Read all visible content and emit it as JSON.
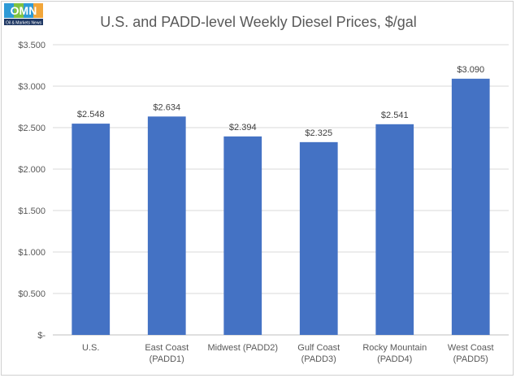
{
  "logo": {
    "text": "OMN",
    "subtext": "Oil & Markets News"
  },
  "chart_data": {
    "type": "bar",
    "title": "U.S. and PADD-level Weekly Diesel Prices, $/gal",
    "categories": [
      [
        "U.S."
      ],
      [
        "East Coast",
        "(PADD1)"
      ],
      [
        "Midwest (PADD2)"
      ],
      [
        "Gulf Coast",
        "(PADD3)"
      ],
      [
        "Rocky Mountain",
        "(PADD4)"
      ],
      [
        "West Coast",
        "(PADD5)"
      ]
    ],
    "values": [
      2.548,
      2.634,
      2.394,
      2.325,
      2.541,
      3.09
    ],
    "data_labels": [
      "$2.548",
      "$2.634",
      "$2.394",
      "$2.325",
      "$2.541",
      "$3.090"
    ],
    "ylim": [
      0,
      3.5
    ],
    "y_ticks": [
      0,
      0.5,
      1.0,
      1.5,
      2.0,
      2.5,
      3.0,
      3.5
    ],
    "y_tick_labels": [
      "$-",
      "$0.500",
      "$1.000",
      "$1.500",
      "$2.000",
      "$2.500",
      "$3.000",
      "$3.500"
    ],
    "grid": true,
    "legend": "none",
    "xlabel": "",
    "ylabel": "",
    "bar_color": "#4472c4",
    "grid_color": "#d9d9d9"
  }
}
